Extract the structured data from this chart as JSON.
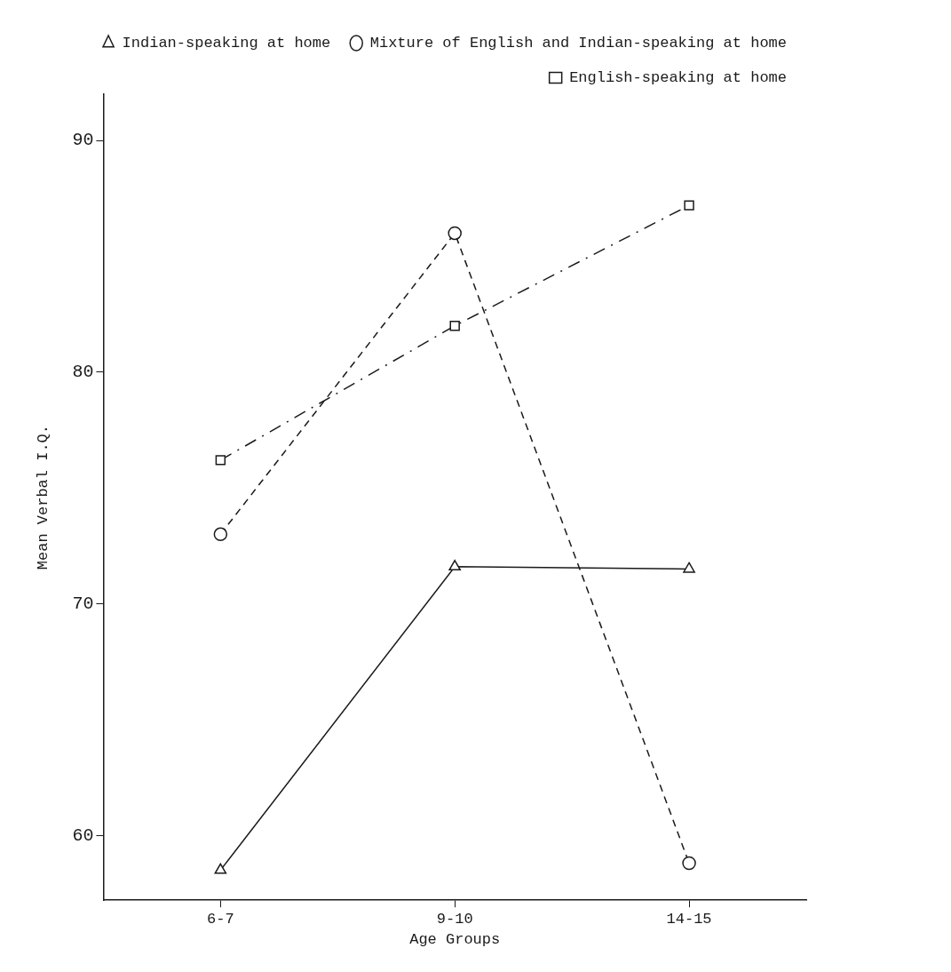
{
  "chart_data": {
    "type": "line",
    "xlabel": "Age Groups",
    "ylabel": "Mean Verbal I.Q.",
    "categories": [
      "6-7",
      "9-10",
      "14-15"
    ],
    "series": [
      {
        "name": "Indian-speaking at home",
        "color": "#1a1a1a",
        "marker": "triangle",
        "line_style": "solid",
        "values": [
          58.5,
          71.6,
          71.5
        ]
      },
      {
        "name": "Mixture of English and Indian-speaking at home",
        "color": "#1a1a1a",
        "marker": "circle",
        "line_style": "dashed",
        "values": [
          73.0,
          86.0,
          58.8
        ]
      },
      {
        "name": "English-speaking at home",
        "color": "#1a1a1a",
        "marker": "square",
        "line_style": "dashdot",
        "values": [
          76.2,
          82.0,
          87.2
        ]
      }
    ],
    "ylim": [
      57.2,
      92
    ],
    "yticks": [
      60,
      70,
      80,
      90
    ],
    "grid": false,
    "legend": "top right"
  }
}
